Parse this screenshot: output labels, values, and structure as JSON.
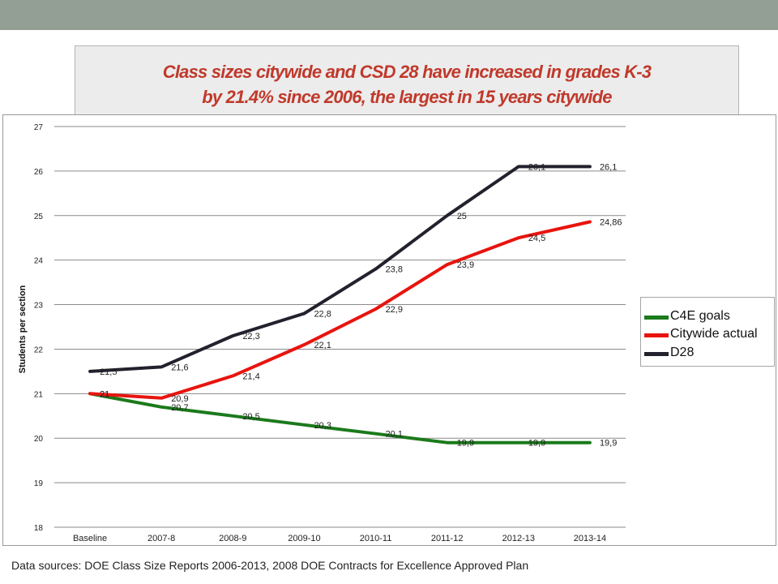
{
  "slide": {
    "title_line1": "Class sizes citywide and CSD 28 have increased in grades K-3",
    "title_line2": "by 21.4% since 2006, the largest in 15 years citywide",
    "footer": "Data sources: DOE Class Size Reports 2006-2013, 2008 DOE Contracts for Excellence Approved Plan",
    "title_color": "#c0392b"
  },
  "chart_data": {
    "type": "line",
    "title": "",
    "xlabel": "",
    "ylabel": "Students per section",
    "categories": [
      "Baseline",
      "2007-8",
      "2008-9",
      "2009-10",
      "2010-11",
      "2011-12",
      "2012-13",
      "2013-14"
    ],
    "ylim": [
      18,
      27
    ],
    "yticks": [
      "18",
      "19",
      "20",
      "21",
      "22",
      "23",
      "24",
      "25",
      "26",
      "27"
    ],
    "grid": true,
    "legend_position": "right",
    "series": [
      {
        "name": "C4E goals",
        "color": "#1b7a1b",
        "values": [
          21,
          20.7,
          20.5,
          20.3,
          20.1,
          19.9,
          19.9,
          19.9
        ],
        "labels": [
          "21",
          "20,7",
          "20,5",
          "20,3",
          "20,1",
          "19,9",
          "19,9",
          "19,9"
        ]
      },
      {
        "name": "Citywide actual",
        "color": "#e8140e",
        "values": [
          21,
          20.9,
          21.4,
          22.1,
          22.9,
          23.9,
          24.5,
          24.86
        ],
        "labels": [
          "21",
          "20,9",
          "21,4",
          "22,1",
          "22,9",
          "23,9",
          "24,5",
          "24,86"
        ]
      },
      {
        "name": "D28",
        "color": "#22222e",
        "values": [
          21.5,
          21.6,
          22.3,
          22.8,
          23.8,
          25,
          26.1,
          26.1
        ],
        "labels": [
          "21,5",
          "21,6",
          "22,3",
          "22,8",
          "23,8",
          "25",
          "26,1",
          "26,1"
        ]
      }
    ]
  }
}
